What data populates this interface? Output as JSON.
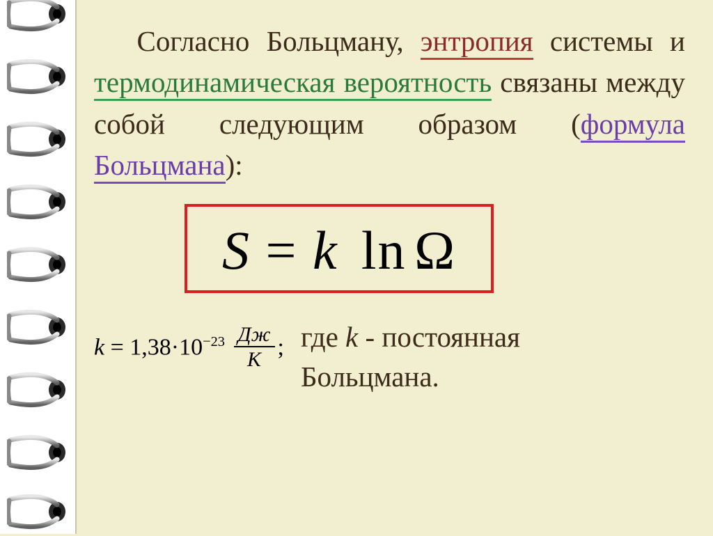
{
  "intro": {
    "p1": "Согласно Больцману, ",
    "entropy": "энтропия",
    "p2": " системы и ",
    "thermo": "термодинамическая вероятность",
    "p3": " связаны между собой следующим образом (",
    "formula_label": "формула  Больцмана",
    "p4": "):"
  },
  "formula": {
    "S": "S",
    "eq": " = ",
    "k": "k",
    "ln": " ln",
    "omega": "Ω"
  },
  "constant": {
    "k_it": "k",
    "eq": " = 1,38",
    "dot": "·",
    "ten": "10",
    "exp": "−23",
    "frac_num": "Дж",
    "frac_den": "К",
    "semi": ";"
  },
  "explain": {
    "where": "где ",
    "k": " k ",
    "dash": " - постоянная",
    "line2": "Больцмана."
  },
  "style": {
    "bg": "#f2eed0",
    "text": "#3c2a1a",
    "red": "#8a2a2a",
    "green": "#2a7a3a",
    "purple": "#6a3ea8",
    "box_border": "#d82020",
    "ring_metal": "#b8b8b8",
    "ring_dark": "#555555"
  }
}
